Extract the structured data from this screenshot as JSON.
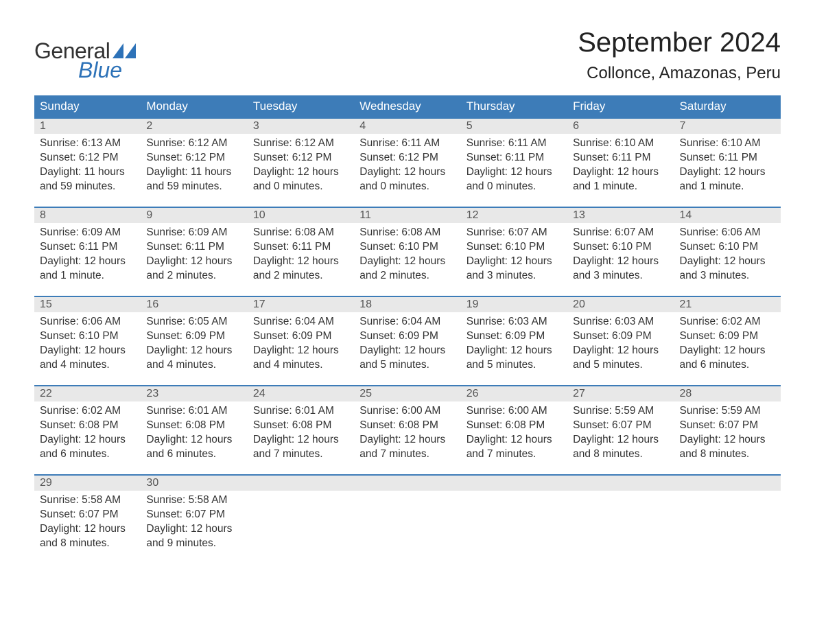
{
  "brand": {
    "word1": "General",
    "word2": "Blue",
    "accent_color": "#2d72b8"
  },
  "title": "September 2024",
  "location": "Collonce, Amazonas, Peru",
  "colors": {
    "header_bg": "#3d7cb8",
    "header_text": "#ffffff",
    "daynum_bg": "#e8e8e8",
    "daynum_text": "#555555",
    "body_text": "#333333",
    "row_border": "#3d7cb8",
    "page_bg": "#ffffff"
  },
  "weekdays": [
    "Sunday",
    "Monday",
    "Tuesday",
    "Wednesday",
    "Thursday",
    "Friday",
    "Saturday"
  ],
  "weeks": [
    [
      {
        "day": "1",
        "sunrise": "Sunrise: 6:13 AM",
        "sunset": "Sunset: 6:12 PM",
        "daylight1": "Daylight: 11 hours",
        "daylight2": "and 59 minutes."
      },
      {
        "day": "2",
        "sunrise": "Sunrise: 6:12 AM",
        "sunset": "Sunset: 6:12 PM",
        "daylight1": "Daylight: 11 hours",
        "daylight2": "and 59 minutes."
      },
      {
        "day": "3",
        "sunrise": "Sunrise: 6:12 AM",
        "sunset": "Sunset: 6:12 PM",
        "daylight1": "Daylight: 12 hours",
        "daylight2": "and 0 minutes."
      },
      {
        "day": "4",
        "sunrise": "Sunrise: 6:11 AM",
        "sunset": "Sunset: 6:12 PM",
        "daylight1": "Daylight: 12 hours",
        "daylight2": "and 0 minutes."
      },
      {
        "day": "5",
        "sunrise": "Sunrise: 6:11 AM",
        "sunset": "Sunset: 6:11 PM",
        "daylight1": "Daylight: 12 hours",
        "daylight2": "and 0 minutes."
      },
      {
        "day": "6",
        "sunrise": "Sunrise: 6:10 AM",
        "sunset": "Sunset: 6:11 PM",
        "daylight1": "Daylight: 12 hours",
        "daylight2": "and 1 minute."
      },
      {
        "day": "7",
        "sunrise": "Sunrise: 6:10 AM",
        "sunset": "Sunset: 6:11 PM",
        "daylight1": "Daylight: 12 hours",
        "daylight2": "and 1 minute."
      }
    ],
    [
      {
        "day": "8",
        "sunrise": "Sunrise: 6:09 AM",
        "sunset": "Sunset: 6:11 PM",
        "daylight1": "Daylight: 12 hours",
        "daylight2": "and 1 minute."
      },
      {
        "day": "9",
        "sunrise": "Sunrise: 6:09 AM",
        "sunset": "Sunset: 6:11 PM",
        "daylight1": "Daylight: 12 hours",
        "daylight2": "and 2 minutes."
      },
      {
        "day": "10",
        "sunrise": "Sunrise: 6:08 AM",
        "sunset": "Sunset: 6:11 PM",
        "daylight1": "Daylight: 12 hours",
        "daylight2": "and 2 minutes."
      },
      {
        "day": "11",
        "sunrise": "Sunrise: 6:08 AM",
        "sunset": "Sunset: 6:10 PM",
        "daylight1": "Daylight: 12 hours",
        "daylight2": "and 2 minutes."
      },
      {
        "day": "12",
        "sunrise": "Sunrise: 6:07 AM",
        "sunset": "Sunset: 6:10 PM",
        "daylight1": "Daylight: 12 hours",
        "daylight2": "and 3 minutes."
      },
      {
        "day": "13",
        "sunrise": "Sunrise: 6:07 AM",
        "sunset": "Sunset: 6:10 PM",
        "daylight1": "Daylight: 12 hours",
        "daylight2": "and 3 minutes."
      },
      {
        "day": "14",
        "sunrise": "Sunrise: 6:06 AM",
        "sunset": "Sunset: 6:10 PM",
        "daylight1": "Daylight: 12 hours",
        "daylight2": "and 3 minutes."
      }
    ],
    [
      {
        "day": "15",
        "sunrise": "Sunrise: 6:06 AM",
        "sunset": "Sunset: 6:10 PM",
        "daylight1": "Daylight: 12 hours",
        "daylight2": "and 4 minutes."
      },
      {
        "day": "16",
        "sunrise": "Sunrise: 6:05 AM",
        "sunset": "Sunset: 6:09 PM",
        "daylight1": "Daylight: 12 hours",
        "daylight2": "and 4 minutes."
      },
      {
        "day": "17",
        "sunrise": "Sunrise: 6:04 AM",
        "sunset": "Sunset: 6:09 PM",
        "daylight1": "Daylight: 12 hours",
        "daylight2": "and 4 minutes."
      },
      {
        "day": "18",
        "sunrise": "Sunrise: 6:04 AM",
        "sunset": "Sunset: 6:09 PM",
        "daylight1": "Daylight: 12 hours",
        "daylight2": "and 5 minutes."
      },
      {
        "day": "19",
        "sunrise": "Sunrise: 6:03 AM",
        "sunset": "Sunset: 6:09 PM",
        "daylight1": "Daylight: 12 hours",
        "daylight2": "and 5 minutes."
      },
      {
        "day": "20",
        "sunrise": "Sunrise: 6:03 AM",
        "sunset": "Sunset: 6:09 PM",
        "daylight1": "Daylight: 12 hours",
        "daylight2": "and 5 minutes."
      },
      {
        "day": "21",
        "sunrise": "Sunrise: 6:02 AM",
        "sunset": "Sunset: 6:09 PM",
        "daylight1": "Daylight: 12 hours",
        "daylight2": "and 6 minutes."
      }
    ],
    [
      {
        "day": "22",
        "sunrise": "Sunrise: 6:02 AM",
        "sunset": "Sunset: 6:08 PM",
        "daylight1": "Daylight: 12 hours",
        "daylight2": "and 6 minutes."
      },
      {
        "day": "23",
        "sunrise": "Sunrise: 6:01 AM",
        "sunset": "Sunset: 6:08 PM",
        "daylight1": "Daylight: 12 hours",
        "daylight2": "and 6 minutes."
      },
      {
        "day": "24",
        "sunrise": "Sunrise: 6:01 AM",
        "sunset": "Sunset: 6:08 PM",
        "daylight1": "Daylight: 12 hours",
        "daylight2": "and 7 minutes."
      },
      {
        "day": "25",
        "sunrise": "Sunrise: 6:00 AM",
        "sunset": "Sunset: 6:08 PM",
        "daylight1": "Daylight: 12 hours",
        "daylight2": "and 7 minutes."
      },
      {
        "day": "26",
        "sunrise": "Sunrise: 6:00 AM",
        "sunset": "Sunset: 6:08 PM",
        "daylight1": "Daylight: 12 hours",
        "daylight2": "and 7 minutes."
      },
      {
        "day": "27",
        "sunrise": "Sunrise: 5:59 AM",
        "sunset": "Sunset: 6:07 PM",
        "daylight1": "Daylight: 12 hours",
        "daylight2": "and 8 minutes."
      },
      {
        "day": "28",
        "sunrise": "Sunrise: 5:59 AM",
        "sunset": "Sunset: 6:07 PM",
        "daylight1": "Daylight: 12 hours",
        "daylight2": "and 8 minutes."
      }
    ],
    [
      {
        "day": "29",
        "sunrise": "Sunrise: 5:58 AM",
        "sunset": "Sunset: 6:07 PM",
        "daylight1": "Daylight: 12 hours",
        "daylight2": "and 8 minutes."
      },
      {
        "day": "30",
        "sunrise": "Sunrise: 5:58 AM",
        "sunset": "Sunset: 6:07 PM",
        "daylight1": "Daylight: 12 hours",
        "daylight2": "and 9 minutes."
      },
      null,
      null,
      null,
      null,
      null
    ]
  ]
}
